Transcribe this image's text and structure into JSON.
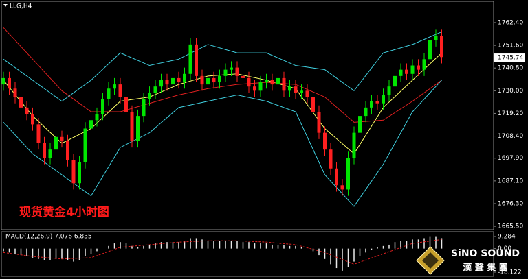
{
  "chart_data": {
    "type": "candlestick",
    "title": "LLG,H4",
    "annotation": "现货黄金4小时图",
    "up_color": "#00e600",
    "down_color": "#ff2020",
    "open": [
      1733,
      1736,
      1731,
      1727,
      1722,
      1719,
      1714,
      1705,
      1698,
      1702,
      1708,
      1706,
      1697,
      1686,
      1696,
      1712,
      1716,
      1719,
      1726,
      1731,
      1733,
      1727,
      1720,
      1706,
      1718,
      1726,
      1729,
      1732,
      1735,
      1733,
      1736,
      1734,
      1738,
      1752,
      1737,
      1733,
      1736,
      1734,
      1737,
      1740,
      1741,
      1737,
      1736,
      1732,
      1730,
      1734,
      1735,
      1733,
      1736,
      1730,
      1732,
      1729,
      1730,
      1727,
      1720,
      1710,
      1702,
      1693,
      1685,
      1683,
      1698,
      1710,
      1718,
      1722,
      1725,
      1724,
      1728,
      1732,
      1737,
      1740,
      1738,
      1742,
      1740,
      1745,
      1754,
      1756
    ],
    "high": [
      1739,
      1739,
      1734,
      1730,
      1725,
      1722,
      1717,
      1708,
      1705,
      1711,
      1711,
      1709,
      1700,
      1699,
      1715,
      1719,
      1722,
      1729,
      1734,
      1736,
      1736,
      1730,
      1723,
      1721,
      1729,
      1732,
      1735,
      1738,
      1738,
      1739,
      1739,
      1741,
      1755,
      1755,
      1740,
      1739,
      1739,
      1740,
      1743,
      1744,
      1744,
      1740,
      1739,
      1735,
      1737,
      1738,
      1738,
      1739,
      1739,
      1735,
      1735,
      1733,
      1733,
      1730,
      1723,
      1713,
      1705,
      1696,
      1688,
      1701,
      1713,
      1721,
      1725,
      1728,
      1728,
      1731,
      1735,
      1740,
      1743,
      1743,
      1745,
      1745,
      1748,
      1757,
      1759,
      1759
    ],
    "low": [
      1730,
      1728,
      1724,
      1719,
      1716,
      1711,
      1702,
      1695,
      1695,
      1699,
      1703,
      1694,
      1683,
      1683,
      1693,
      1709,
      1713,
      1716,
      1723,
      1728,
      1724,
      1717,
      1703,
      1703,
      1715,
      1723,
      1726,
      1729,
      1730,
      1730,
      1731,
      1731,
      1735,
      1734,
      1730,
      1730,
      1731,
      1731,
      1734,
      1737,
      1734,
      1733,
      1729,
      1727,
      1727,
      1731,
      1730,
      1730,
      1727,
      1727,
      1726,
      1726,
      1724,
      1717,
      1707,
      1699,
      1690,
      1682,
      1680,
      1680,
      1695,
      1707,
      1715,
      1719,
      1721,
      1721,
      1725,
      1729,
      1734,
      1735,
      1735,
      1737,
      1737,
      1742,
      1751,
      1743
    ],
    "close": [
      1736,
      1731,
      1727,
      1722,
      1719,
      1714,
      1705,
      1698,
      1702,
      1708,
      1706,
      1697,
      1686,
      1696,
      1712,
      1716,
      1719,
      1726,
      1731,
      1733,
      1727,
      1720,
      1706,
      1718,
      1726,
      1729,
      1732,
      1735,
      1733,
      1736,
      1734,
      1738,
      1752,
      1737,
      1733,
      1736,
      1734,
      1737,
      1740,
      1741,
      1737,
      1736,
      1732,
      1730,
      1734,
      1735,
      1733,
      1736,
      1730,
      1732,
      1729,
      1730,
      1727,
      1720,
      1710,
      1702,
      1693,
      1685,
      1683,
      1698,
      1710,
      1718,
      1722,
      1725,
      1724,
      1728,
      1732,
      1737,
      1740,
      1738,
      1742,
      1740,
      1745,
      1754,
      1756,
      1746
    ],
    "ylim": [
      1663.9,
      1772.5
    ],
    "yticks": [
      {
        "value": 1762.4,
        "label": "1762.40"
      },
      {
        "value": 1751.6,
        "label": "1751.60"
      },
      {
        "value": 1740.8,
        "label": "1740.80"
      },
      {
        "value": 1730,
        "label": "1730.00"
      },
      {
        "value": 1719.2,
        "label": "1719.20"
      },
      {
        "value": 1708.4,
        "label": "1708.40"
      },
      {
        "value": 1697.9,
        "label": "1697.90"
      },
      {
        "value": 1687.1,
        "label": "1687.10"
      },
      {
        "value": 1676.3,
        "label": "1676.30"
      },
      {
        "value": 1665.5,
        "label": "1665.50"
      }
    ],
    "last_price": 1745.74,
    "overlays": [
      {
        "color": "#ffff66",
        "x": [
          0,
          5,
          10,
          15,
          20,
          25,
          30,
          35,
          40,
          45,
          50,
          55,
          60,
          65,
          70,
          75
        ],
        "values": [
          1735,
          1718,
          1705,
          1712,
          1725,
          1727,
          1733,
          1737,
          1738,
          1735,
          1731,
          1712,
          1700,
          1722,
          1735,
          1748
        ]
      },
      {
        "color": "#e02020",
        "x": [
          0,
          5,
          10,
          15,
          20,
          25,
          30,
          35,
          40,
          45,
          50,
          55,
          60,
          65,
          70,
          75
        ],
        "values": [
          1760,
          1745,
          1730,
          1720,
          1720,
          1724,
          1728,
          1731,
          1733,
          1734,
          1733,
          1727,
          1715,
          1716,
          1725,
          1735
        ]
      },
      {
        "color": "#40d0e0",
        "x": [
          0,
          5,
          10,
          15,
          20,
          25,
          30,
          35,
          40,
          45,
          50,
          55,
          60,
          65,
          70,
          75
        ],
        "values": [
          1745,
          1735,
          1725,
          1735,
          1748,
          1742,
          1745,
          1752,
          1748,
          1748,
          1742,
          1740,
          1730,
          1748,
          1752,
          1758
        ]
      },
      {
        "color": "#40d0e0",
        "x": [
          0,
          5,
          10,
          15,
          20,
          25,
          30,
          35,
          40,
          45,
          50,
          55,
          60,
          65,
          70,
          75
        ],
        "values": [
          1715,
          1700,
          1690,
          1680,
          1703,
          1710,
          1722,
          1725,
          1728,
          1725,
          1720,
          1690,
          1675,
          1695,
          1720,
          1735
        ]
      }
    ],
    "macd": {
      "type": "bar",
      "title": "MACD(12,26,9) 7.076 6.835",
      "color": "#e8e8e8",
      "values": [
        -2,
        -3,
        -4,
        -5,
        -6,
        -7,
        -8,
        -9,
        -9,
        -8,
        -8,
        -9,
        -10,
        -9,
        -6,
        -4,
        -2,
        0,
        2,
        4,
        5,
        4,
        2,
        1,
        2,
        3,
        4,
        5,
        5,
        5,
        5,
        6,
        8,
        8,
        7,
        6,
        6,
        6,
        6,
        6,
        6,
        5,
        5,
        4,
        4,
        4,
        3,
        3,
        3,
        2,
        2,
        1,
        0,
        -2,
        -5,
        -8,
        -12,
        -15,
        -17,
        -14,
        -10,
        -6,
        -3,
        -1,
        1,
        2,
        3,
        5,
        6,
        6,
        7,
        7,
        8,
        9,
        9,
        8
      ],
      "signal": {
        "color": "#e02020",
        "x": [
          0,
          5,
          10,
          15,
          20,
          25,
          30,
          35,
          40,
          45,
          50,
          55,
          60,
          65,
          70,
          75
        ],
        "values": [
          -3,
          -6,
          -8,
          -7,
          1,
          3,
          5,
          6,
          6,
          5,
          3,
          -3,
          -12,
          -4,
          4,
          7
        ]
      },
      "ylim": [
        -21.3,
        13
      ],
      "yticks": [
        9.284,
        {
          "value": 0,
          "label": "0.00"
        },
        -18.122
      ]
    }
  },
  "logo": {
    "name": "SiNO SOUND",
    "subtitle": "漢 聲 集 團"
  }
}
